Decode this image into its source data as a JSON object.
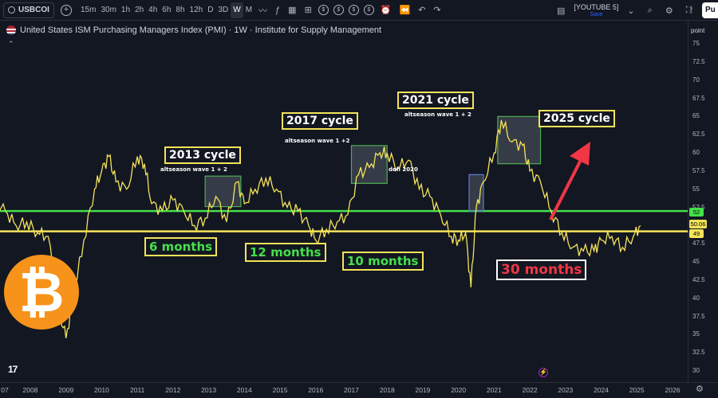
{
  "toolbar": {
    "symbol": "USBCOI",
    "add_symbol": "+",
    "intervals": [
      "15m",
      "30m",
      "1h",
      "2h",
      "4h",
      "6h",
      "8h",
      "12h",
      "D",
      "3D",
      "W",
      "M"
    ],
    "active_interval": "W",
    "layout_name": "[YOUTUBE 5]",
    "layout_status": "Save",
    "publish_label": "Pu"
  },
  "chart": {
    "title": "United States ISM Purchasing Managers Index (PMI) · 1W · Institute for Supply Management",
    "axis_unit_label": "point",
    "price_ticks": [
      "75",
      "72.5",
      "70",
      "67.5",
      "65",
      "62.5",
      "60",
      "57.5",
      "55",
      "52.5",
      "47.5",
      "45",
      "42.5",
      "40",
      "37.5",
      "35",
      "32.5",
      "30"
    ],
    "year_ticks": [
      "07",
      "2008",
      "2009",
      "2010",
      "2011",
      "2012",
      "2013",
      "2014",
      "2015",
      "2016",
      "2017",
      "2018",
      "2019",
      "2020",
      "2021",
      "2022",
      "2023",
      "2024",
      "2025",
      "2026"
    ],
    "green_line_value": "52",
    "current_value": "50.06",
    "yellow_line_value": "49",
    "colors": {
      "pmi_line": "#f4e35a",
      "green_line": "#45e04b",
      "yellow_line": "#f4e35a",
      "arrow": "#f23645",
      "btc": "#f7931a"
    }
  },
  "annotations": {
    "cycle_2013": "2013 cycle",
    "cycle_2017": "2017 cycle",
    "cycle_2021": "2021 cycle",
    "cycle_2025": "2025 cycle",
    "alt_2013": "altseason wave 1 + 2",
    "alt_2017": "altseason wave 1 +2",
    "alt_2021": "altseason wave 1 + 2",
    "defi_2020": "defi 2020",
    "months_6": "6 months",
    "months_12": "12 months",
    "months_10": "10 months",
    "months_30": "30 months"
  },
  "chart_data": {
    "type": "line",
    "series": [
      {
        "name": "United States ISM Purchasing Managers Index (PMI)",
        "x": [
          2007.0,
          2007.3,
          2007.6,
          2007.9,
          2008.2,
          2008.5,
          2008.8,
          2009.0,
          2009.2,
          2009.5,
          2009.8,
          2010.0,
          2010.2,
          2010.4,
          2010.7,
          2011.0,
          2011.2,
          2011.4,
          2011.7,
          2012.0,
          2012.3,
          2012.6,
          2012.9,
          2013.2,
          2013.5,
          2013.8,
          2014.0,
          2014.3,
          2014.6,
          2014.9,
          2015.2,
          2015.5,
          2015.8,
          2016.0,
          2016.3,
          2016.6,
          2016.9,
          2017.2,
          2017.5,
          2017.8,
          2018.0,
          2018.3,
          2018.6,
          2018.9,
          2019.2,
          2019.5,
          2019.8,
          2020.0,
          2020.2,
          2020.35,
          2020.5,
          2020.7,
          2021.0,
          2021.2,
          2021.5,
          2021.8,
          2022.0,
          2022.3,
          2022.6,
          2022.9,
          2023.2,
          2023.5,
          2023.8,
          2024.0,
          2024.3,
          2024.6,
          2024.9,
          2025.1
        ],
        "y": [
          53,
          52,
          50,
          50.5,
          49,
          48.5,
          38.5,
          34.5,
          40,
          48,
          55,
          57.5,
          59.5,
          56,
          55,
          59.5,
          58.5,
          53,
          52,
          53.5,
          52,
          50,
          51,
          54,
          50.5,
          56,
          53,
          55,
          56.5,
          55,
          52.5,
          52,
          50,
          48,
          49.5,
          50.5,
          51.5,
          57,
          58,
          60,
          60,
          58,
          59,
          55,
          54,
          51.5,
          48.5,
          48,
          49,
          41.5,
          52.5,
          56,
          60,
          64.5,
          61.5,
          61,
          57.5,
          56,
          52,
          49,
          47,
          46.5,
          46.5,
          48,
          48.5,
          47,
          48.5,
          50
        ]
      }
    ],
    "reference_lines": [
      {
        "name": "green",
        "value": 52
      },
      {
        "name": "yellow",
        "value": 49.2
      }
    ],
    "xlabel": "",
    "ylabel": "",
    "xlim": [
      2007,
      2026.5
    ],
    "ylim": [
      30,
      77
    ]
  }
}
